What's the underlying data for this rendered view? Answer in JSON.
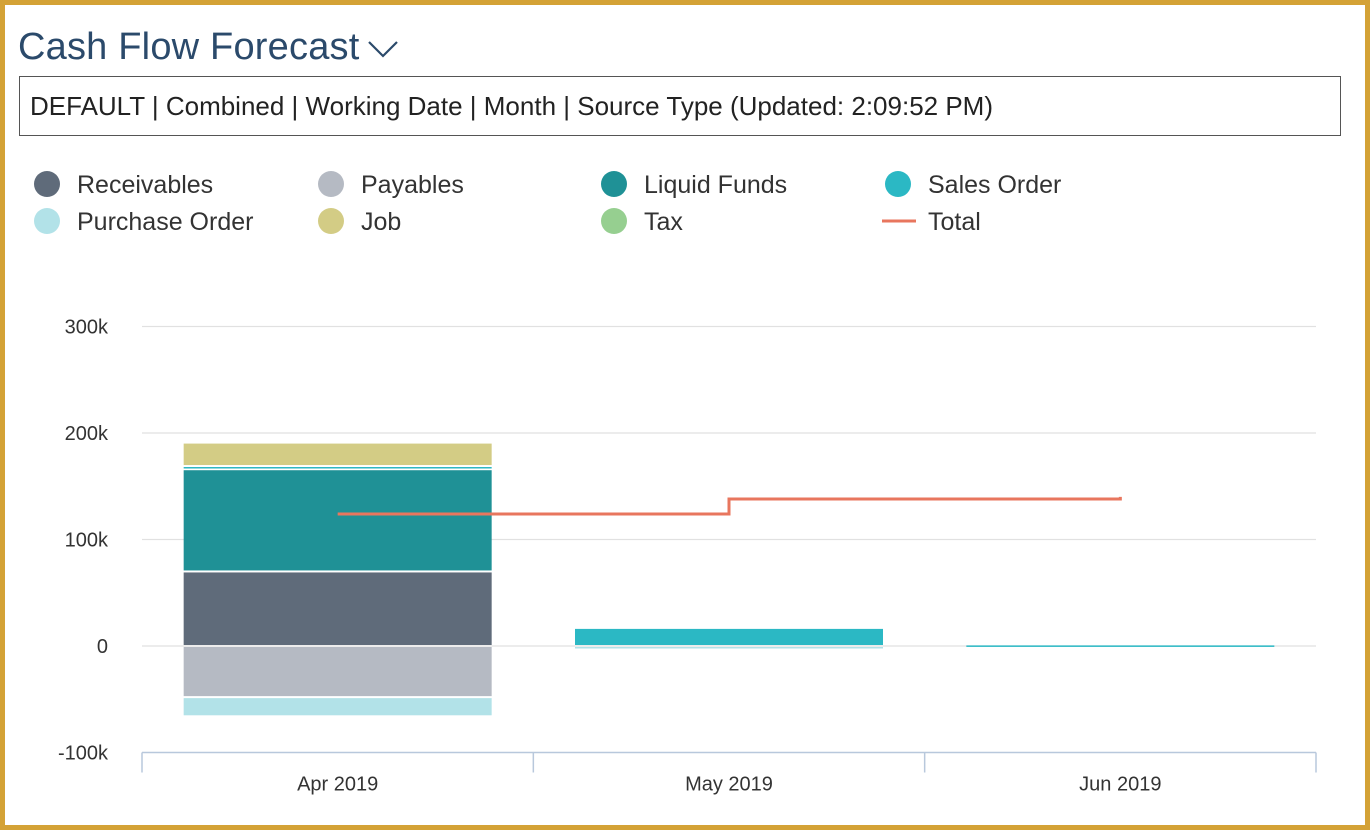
{
  "header": {
    "title": "Cash Flow Forecast",
    "title_menu_icon": "chevron-down-icon",
    "filter_text": "DEFAULT | Combined | Working Date | Month | Source Type (Updated:  2:09:52 PM)"
  },
  "colors": {
    "frame": "#d4a236",
    "title": "#2b4a6b",
    "receivables": "#5f6b7a",
    "payables": "#b5bac3",
    "liquid_funds": "#1f9196",
    "sales_order": "#2bb8c4",
    "purchase_order": "#b2e2e8",
    "job": "#d3cc85",
    "tax": "#96cf90",
    "total": "#e8765e",
    "grid": "#e1e1e1",
    "axis": "#b8c8dc"
  },
  "chart_data": {
    "type": "bar",
    "stacked": true,
    "title": "",
    "xlabel": "",
    "ylabel": "",
    "categories": [
      "Apr 2019",
      "May 2019",
      "Jun 2019"
    ],
    "ylim": [
      -100000,
      300000
    ],
    "yticks": [
      -100000,
      0,
      100000,
      200000,
      300000
    ],
    "ytick_labels": [
      "-100k",
      "0",
      "100k",
      "200k",
      "300k"
    ],
    "grid": true,
    "legend_position": "top",
    "series": [
      {
        "name": "Receivables",
        "key": "receivables",
        "type": "bar",
        "values": [
          70000,
          0,
          0
        ]
      },
      {
        "name": "Payables",
        "key": "payables",
        "type": "bar",
        "values": [
          -48000,
          0,
          0
        ]
      },
      {
        "name": "Liquid Funds",
        "key": "liquid_funds",
        "type": "bar",
        "values": [
          96000,
          0,
          0
        ]
      },
      {
        "name": "Sales Order",
        "key": "sales_order",
        "type": "bar",
        "values": [
          3000,
          17000,
          1500
        ]
      },
      {
        "name": "Purchase Order",
        "key": "purchase_order",
        "type": "bar",
        "values": [
          -18000,
          -2500,
          0
        ]
      },
      {
        "name": "Job",
        "key": "job",
        "type": "bar",
        "values": [
          22000,
          0,
          0
        ]
      },
      {
        "name": "Tax",
        "key": "tax",
        "type": "bar",
        "values": [
          0,
          0,
          0
        ]
      },
      {
        "name": "Total",
        "key": "total",
        "type": "line",
        "values": [
          124000,
          138000,
          140000
        ]
      }
    ]
  }
}
